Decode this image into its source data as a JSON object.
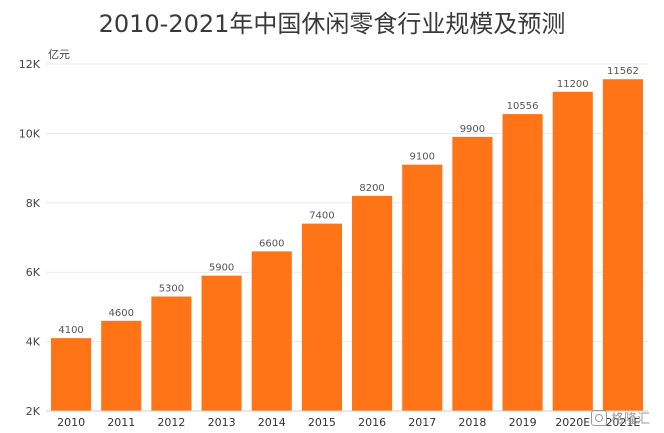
{
  "chart_data": {
    "type": "bar",
    "title": "2010-2021年中国休闲零食行业规模及预测",
    "ylabel": "亿元",
    "xlabel": "",
    "categories": [
      "2010",
      "2011",
      "2012",
      "2013",
      "2014",
      "2015",
      "2016",
      "2017",
      "2018",
      "2019",
      "2020E",
      "2021E"
    ],
    "values": [
      4100,
      4600,
      5300,
      5900,
      6600,
      7400,
      8200,
      9100,
      9900,
      10556,
      11200,
      11562
    ],
    "data_labels": [
      "4100",
      "4600",
      "5300",
      "5900",
      "6600",
      "7400",
      "8200",
      "9100",
      "9900",
      "10556",
      "11200",
      "11562"
    ],
    "ylim": [
      2000,
      12000
    ],
    "yticks": [
      2000,
      4000,
      6000,
      8000,
      10000,
      12000
    ],
    "ytick_labels": [
      "2K",
      "4K",
      "6K",
      "8K",
      "10K",
      "12K"
    ],
    "grid": true,
    "bar_color": "#ff7417"
  },
  "watermark": {
    "text": "格隆汇",
    "icon": "logo-icon"
  }
}
